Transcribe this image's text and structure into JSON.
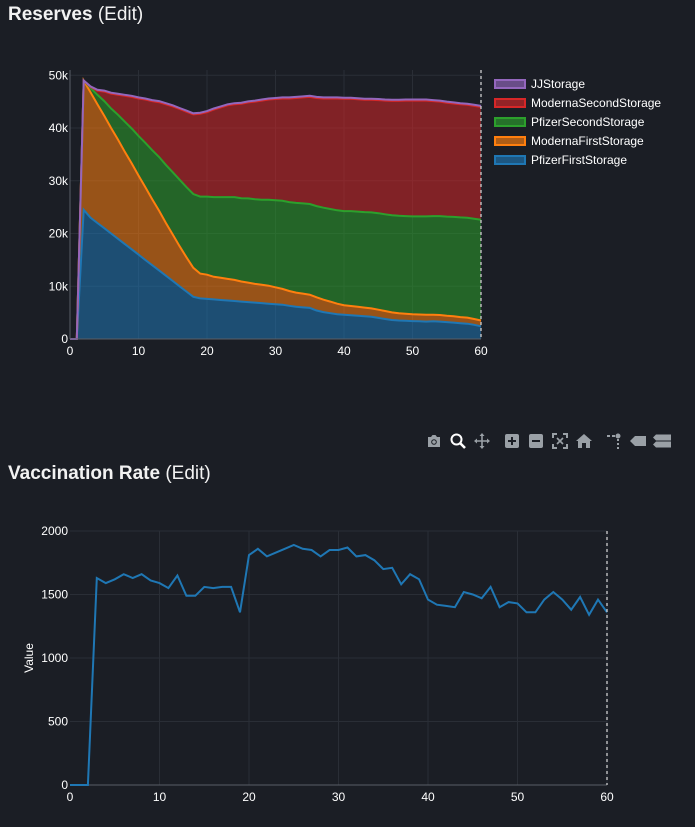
{
  "sections": {
    "reserves": {
      "title": "Reserves",
      "edit_label": "(Edit)"
    },
    "vaccination": {
      "title": "Vaccination Rate",
      "edit_label": "(Edit)"
    }
  },
  "modebar": {
    "icons": [
      "camera-icon",
      "zoom-icon",
      "pan-icon",
      "zoom-in-icon",
      "zoom-out-icon",
      "autoscale-icon",
      "reset-axes-icon",
      "spike-lines-icon",
      "hover-closest-icon",
      "hover-compare-icon"
    ]
  },
  "chart_data": [
    {
      "type": "area",
      "stacked": true,
      "title": "",
      "xlabel": "",
      "ylabel": "",
      "xlim": [
        0,
        60
      ],
      "ylim": [
        0,
        51000
      ],
      "x_ticks": [
        0,
        10,
        20,
        30,
        40,
        50,
        60
      ],
      "y_ticks": [
        0,
        10000,
        20000,
        30000,
        40000,
        50000
      ],
      "y_tick_labels": [
        "0",
        "10k",
        "20k",
        "30k",
        "40k",
        "50k"
      ],
      "grid": true,
      "legend_position": "top-right",
      "x": [
        0,
        1,
        2,
        3,
        4,
        5,
        6,
        7,
        8,
        9,
        10,
        11,
        12,
        13,
        14,
        15,
        16,
        17,
        18,
        19,
        20,
        21,
        22,
        23,
        24,
        25,
        26,
        27,
        28,
        29,
        30,
        31,
        32,
        33,
        34,
        35,
        36,
        37,
        38,
        39,
        40,
        41,
        42,
        43,
        44,
        45,
        46,
        47,
        48,
        49,
        50,
        51,
        52,
        53,
        54,
        55,
        56,
        57,
        58,
        59,
        60
      ],
      "series": [
        {
          "name": "PfizerFirstStorage",
          "color": "#1f77b4",
          "values": [
            0,
            0,
            24500,
            23000,
            22000,
            21000,
            20000,
            19000,
            18000,
            17000,
            16000,
            15000,
            14000,
            13000,
            12000,
            11000,
            10000,
            9000,
            8000,
            7700,
            7600,
            7500,
            7400,
            7300,
            7200,
            7100,
            7000,
            6900,
            6800,
            6700,
            6600,
            6500,
            6300,
            6100,
            6000,
            5900,
            5400,
            5100,
            4900,
            4700,
            4600,
            4500,
            4400,
            4300,
            4200,
            4000,
            3800,
            3600,
            3500,
            3450,
            3400,
            3350,
            3300,
            3350,
            3300,
            3200,
            3100,
            3000,
            2900,
            2700,
            2400
          ]
        },
        {
          "name": "ModernaFirstStorage",
          "color": "#ff7f0e",
          "values": [
            0,
            0,
            24500,
            23800,
            22500,
            21300,
            20000,
            18800,
            17500,
            16300,
            15000,
            13800,
            12500,
            11300,
            10000,
            8800,
            7600,
            6500,
            5500,
            4700,
            4600,
            4300,
            4200,
            4100,
            4000,
            3800,
            3700,
            3550,
            3500,
            3400,
            3200,
            3000,
            2800,
            2700,
            2600,
            2500,
            2500,
            2350,
            2200,
            2000,
            1800,
            1750,
            1700,
            1650,
            1600,
            1550,
            1500,
            1450,
            1400,
            1350,
            1300,
            1300,
            1300,
            1250,
            1250,
            1200,
            1200,
            1150,
            1150,
            1100,
            1100
          ]
        },
        {
          "name": "PfizerSecondStorage",
          "color": "#2ca02c",
          "values": [
            0,
            0,
            0,
            800,
            1800,
            2800,
            3700,
            4700,
            5700,
            6600,
            7500,
            8400,
            9300,
            10200,
            11000,
            11800,
            12600,
            13300,
            14000,
            14600,
            14800,
            15100,
            15300,
            15500,
            15700,
            15800,
            15950,
            16050,
            16100,
            16300,
            16500,
            16700,
            16850,
            17000,
            17100,
            17200,
            17300,
            17450,
            17550,
            17700,
            17850,
            18000,
            18050,
            18100,
            18200,
            18300,
            18350,
            18400,
            18450,
            18500,
            18550,
            18600,
            18650,
            18700,
            18750,
            18800,
            18850,
            18900,
            18950,
            19000,
            19100
          ]
        },
        {
          "name": "ModernaSecondStorage",
          "color": "#d62728",
          "values": [
            0,
            0,
            0,
            200,
            800,
            1800,
            2800,
            3800,
            4900,
            6000,
            7100,
            8200,
            9300,
            10400,
            11500,
            12500,
            13400,
            14300,
            15100,
            15700,
            16000,
            16600,
            17000,
            17400,
            17600,
            17900,
            18200,
            18500,
            18800,
            19000,
            19200,
            19400,
            19650,
            19900,
            20100,
            20300,
            20500,
            20700,
            20950,
            21200,
            21300,
            21300,
            21300,
            21300,
            21350,
            21450,
            21550,
            21700,
            21800,
            21900,
            21950,
            21950,
            21950,
            21800,
            21700,
            21600,
            21500,
            21450,
            21400,
            21400,
            21400
          ]
        },
        {
          "name": "JJStorage",
          "color": "#9467bd",
          "values": [
            0,
            0,
            0,
            100,
            150,
            200,
            200,
            200,
            200,
            200,
            200,
            200,
            200,
            200,
            200,
            200,
            200,
            200,
            200,
            200,
            200,
            200,
            200,
            200,
            200,
            200,
            200,
            200,
            200,
            200,
            200,
            200,
            200,
            200,
            200,
            200,
            200,
            200,
            200,
            200,
            200,
            200,
            200,
            200,
            200,
            200,
            200,
            200,
            200,
            200,
            200,
            200,
            200,
            200,
            200,
            200,
            200,
            200,
            200,
            200,
            200
          ]
        }
      ]
    },
    {
      "type": "line",
      "title": "",
      "xlabel": "",
      "ylabel": "Value",
      "xlim": [
        0,
        60
      ],
      "ylim": [
        0,
        2000
      ],
      "x_ticks": [
        0,
        10,
        20,
        30,
        40,
        50,
        60
      ],
      "y_ticks": [
        0,
        500,
        1000,
        1500,
        2000
      ],
      "grid": true,
      "legend_position": "none",
      "x": [
        0,
        1,
        2,
        3,
        4,
        5,
        6,
        7,
        8,
        9,
        10,
        11,
        12,
        13,
        14,
        15,
        16,
        17,
        18,
        19,
        20,
        21,
        22,
        23,
        24,
        25,
        26,
        27,
        28,
        29,
        30,
        31,
        32,
        33,
        34,
        35,
        36,
        37,
        38,
        39,
        40,
        41,
        42,
        43,
        44,
        45,
        46,
        47,
        48,
        49,
        50,
        51,
        52,
        53,
        54,
        55,
        56,
        57,
        58,
        59,
        60
      ],
      "series": [
        {
          "name": "",
          "color": "#1f77b4",
          "values": [
            0,
            0,
            0,
            1630,
            1590,
            1620,
            1660,
            1630,
            1660,
            1610,
            1590,
            1550,
            1650,
            1490,
            1490,
            1560,
            1550,
            1560,
            1560,
            1360,
            1810,
            1860,
            1800,
            1830,
            1860,
            1890,
            1860,
            1850,
            1800,
            1850,
            1850,
            1870,
            1800,
            1810,
            1770,
            1700,
            1710,
            1580,
            1660,
            1620,
            1460,
            1420,
            1410,
            1400,
            1520,
            1500,
            1470,
            1560,
            1400,
            1440,
            1430,
            1360,
            1360,
            1460,
            1520,
            1460,
            1380,
            1480,
            1340,
            1460,
            1360
          ]
        }
      ]
    }
  ]
}
